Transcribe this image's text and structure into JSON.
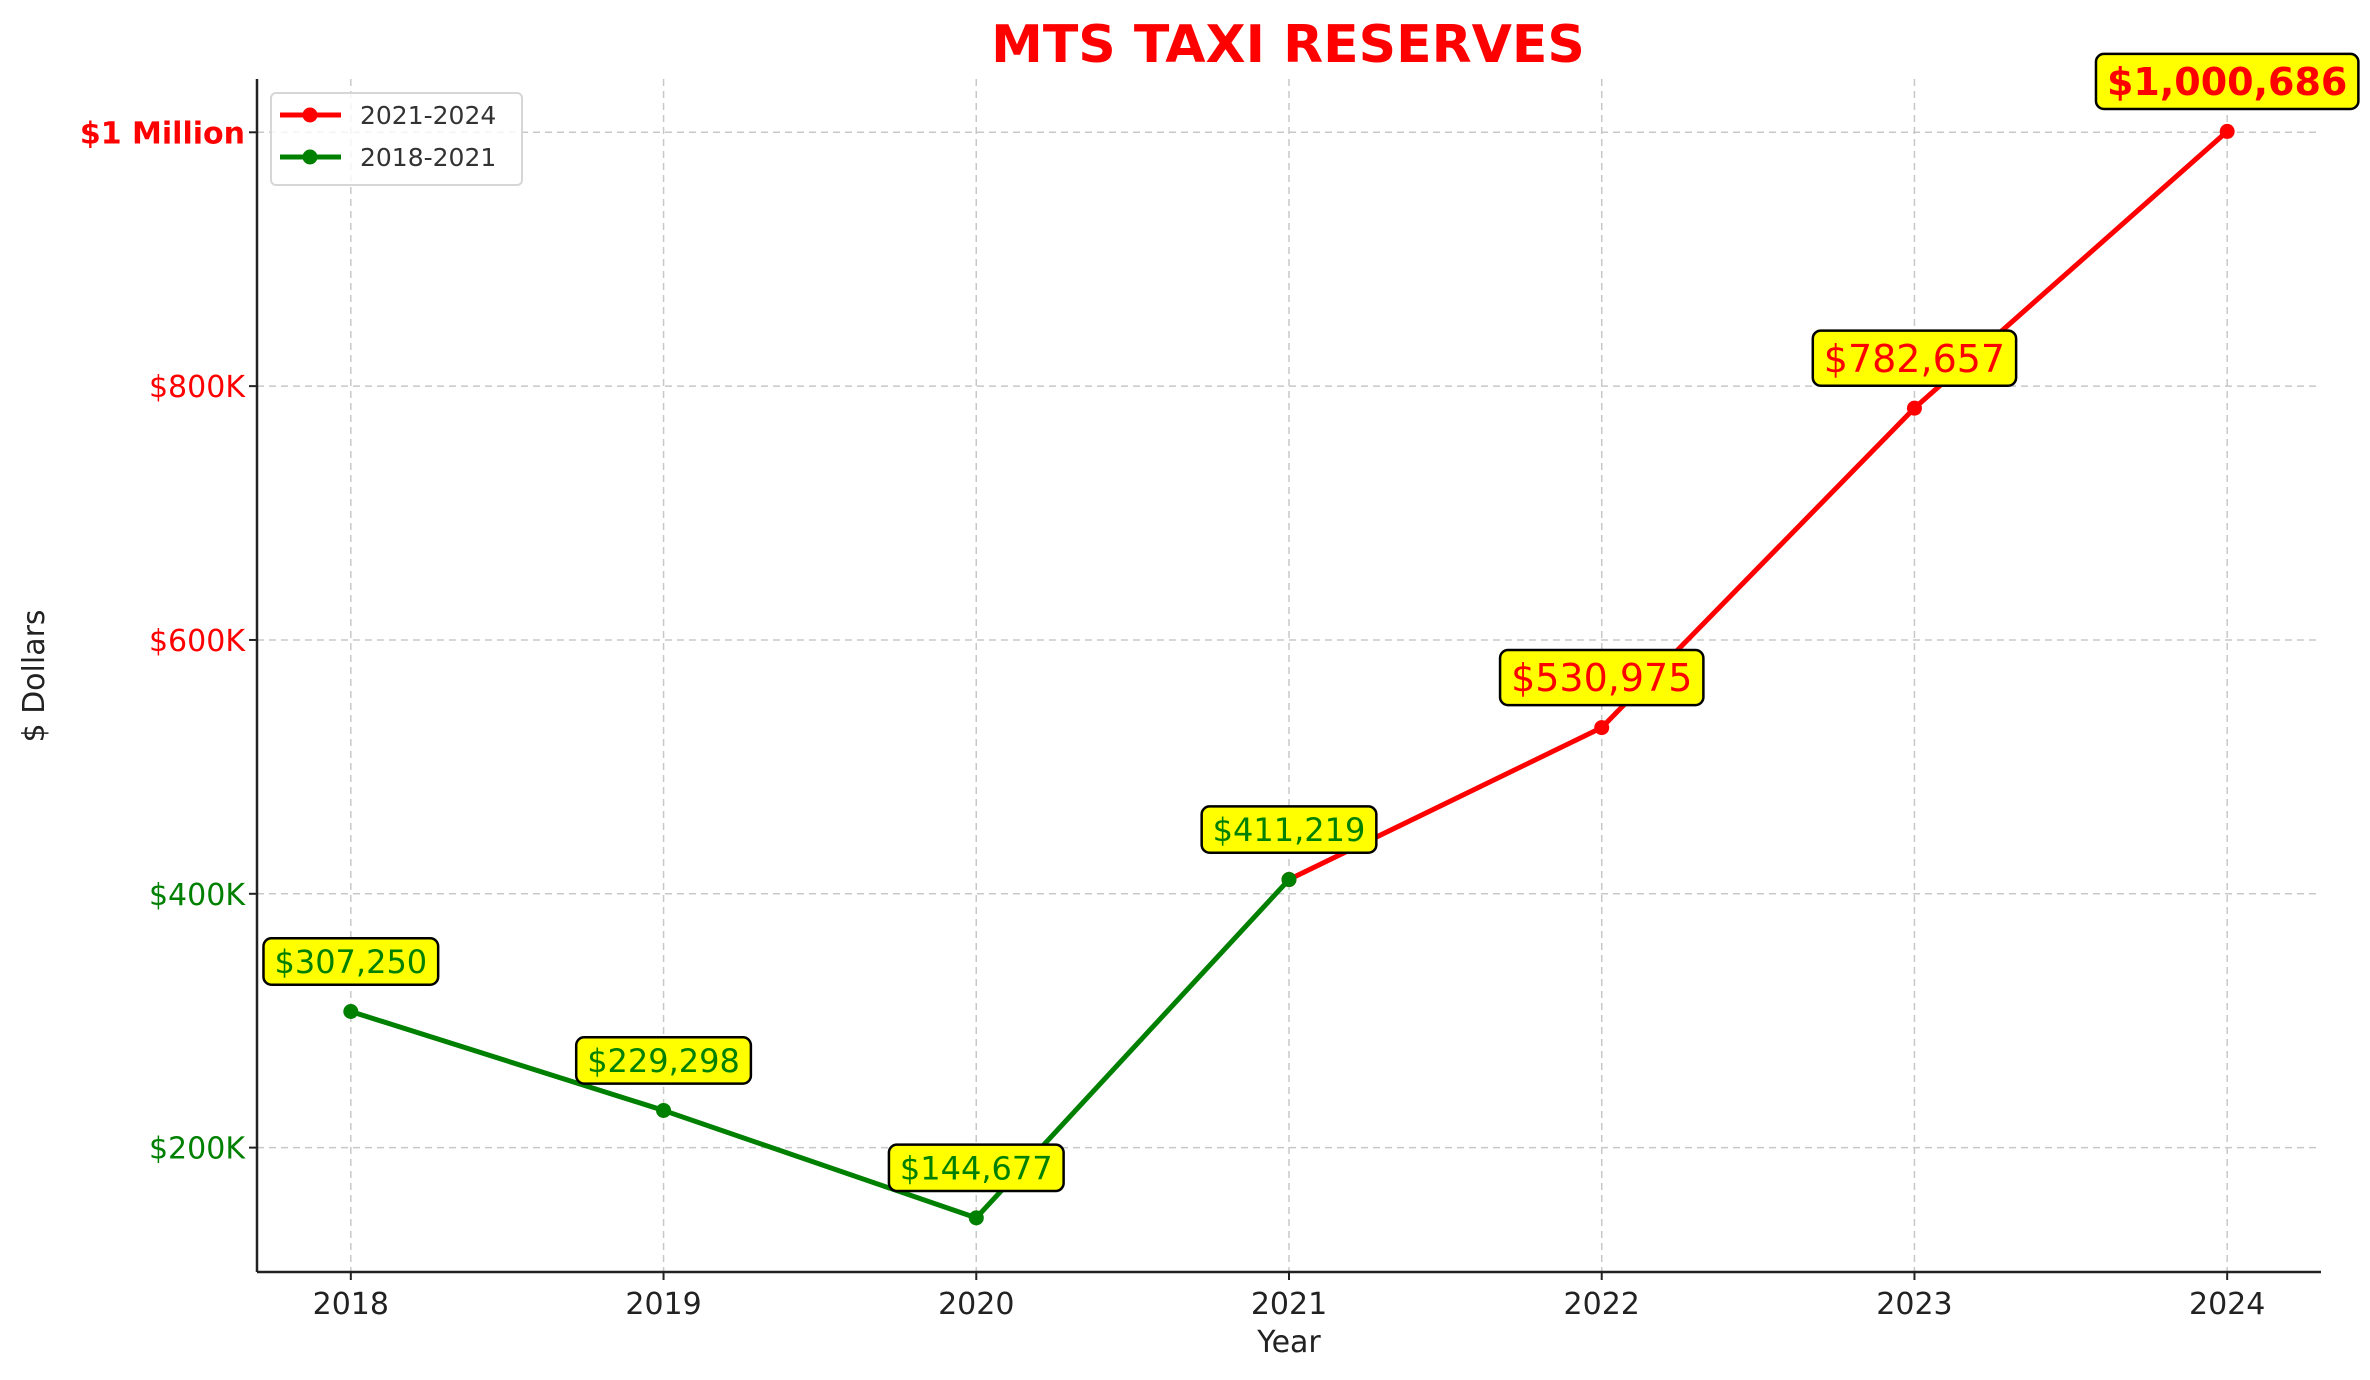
{
  "chart_data": {
    "type": "line",
    "title": "MTS TAXI RESERVES",
    "xlabel": "Year",
    "ylabel": "$ Dollars",
    "xlim": [
      2017.7,
      2024.3
    ],
    "ylim": [
      102000,
      1042000
    ],
    "grid": true,
    "legend_position": "top-left",
    "x_ticks": [
      2018,
      2019,
      2020,
      2021,
      2022,
      2023,
      2024
    ],
    "y_ticks": [
      {
        "value": 200000,
        "label": "$200K",
        "color": "#008000",
        "bold": false
      },
      {
        "value": 400000,
        "label": "$400K",
        "color": "#008000",
        "bold": false
      },
      {
        "value": 600000,
        "label": "$600K",
        "color": "#ff0000",
        "bold": false
      },
      {
        "value": 800000,
        "label": "$800K",
        "color": "#ff0000",
        "bold": false
      },
      {
        "value": 1000000,
        "label": "$1 Million",
        "color": "#ff0000",
        "bold": true
      }
    ],
    "series": [
      {
        "name": "2021-2024",
        "color": "#ff0000",
        "x": [
          2021,
          2022,
          2023,
          2024
        ],
        "values": [
          411219,
          530975,
          782657,
          1000686
        ]
      },
      {
        "name": "2018-2021",
        "color": "#008000",
        "x": [
          2018,
          2019,
          2020,
          2021
        ],
        "values": [
          307250,
          229298,
          144677,
          411219
        ]
      }
    ],
    "annotations": [
      {
        "x": 2018,
        "y": 307250,
        "text": "$307,250",
        "color": "#008000",
        "bold": false,
        "size": "small"
      },
      {
        "x": 2019,
        "y": 229298,
        "text": "$229,298",
        "color": "#008000",
        "bold": false,
        "size": "small"
      },
      {
        "x": 2020,
        "y": 144677,
        "text": "$144,677",
        "color": "#008000",
        "bold": false,
        "size": "small"
      },
      {
        "x": 2021,
        "y": 411219,
        "text": "$411,219",
        "color": "#008000",
        "bold": false,
        "size": "small"
      },
      {
        "x": 2022,
        "y": 530975,
        "text": "$530,975",
        "color": "#ff0000",
        "bold": false,
        "size": "large"
      },
      {
        "x": 2023,
        "y": 782657,
        "text": "$782,657",
        "color": "#ff0000",
        "bold": false,
        "size": "large"
      },
      {
        "x": 2024,
        "y": 1000686,
        "text": "$1,000,686",
        "color": "#ff0000",
        "bold": true,
        "size": "large"
      }
    ],
    "annotation_bg": "#ffff00",
    "title_color": "#ff0000"
  }
}
